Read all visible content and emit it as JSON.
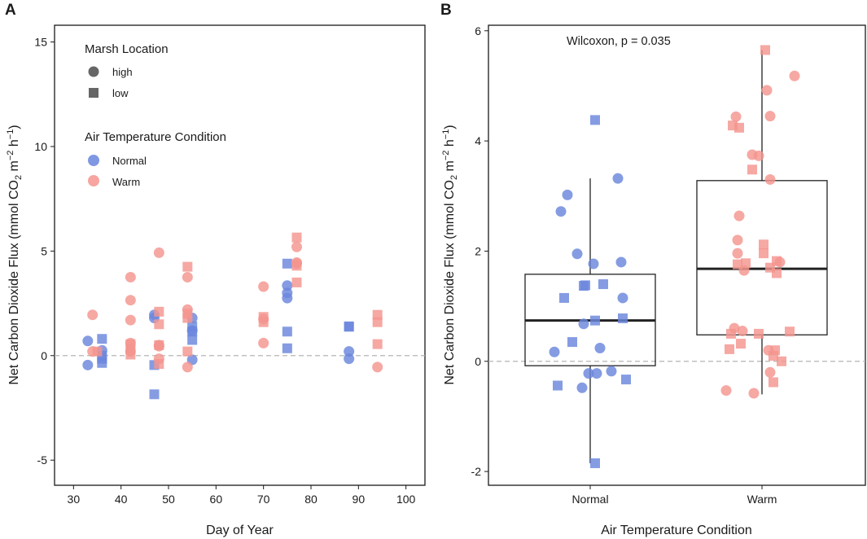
{
  "colors": {
    "normal": "#6a86dd",
    "warm": "#f4958f",
    "box_line": "#222222",
    "zero_line": "#b5b5b5",
    "legend_shape": "#666666"
  },
  "chart_data": [
    {
      "panel_label": "A",
      "type": "scatter",
      "xlabel": "Day of Year",
      "ylabel_prefix": "Net Carbon Dioxide Flux (mmol CO",
      "ylabel_sub2": "2",
      "ylabel_mid": " m",
      "ylabel_sup_m": "−2",
      "ylabel_h": " h",
      "ylabel_sup_h": "−1",
      "ylabel_suffix": ")",
      "xlim": [
        26,
        104
      ],
      "ylim": [
        -6.2,
        15.8
      ],
      "x_ticks": [
        30,
        40,
        50,
        60,
        70,
        80,
        90,
        100
      ],
      "x_tick_labels": [
        "30",
        "40",
        "50",
        "60",
        "70",
        "80",
        "90",
        "100"
      ],
      "y_ticks": [
        -5,
        0,
        5,
        10,
        15
      ],
      "y_tick_labels": [
        "-5",
        "0",
        "5",
        "10",
        "15"
      ],
      "reference_line_y": 0,
      "legend": {
        "title_shape": "Marsh Location",
        "shape_items": [
          {
            "label": "high",
            "shape": "circle"
          },
          {
            "label": "low",
            "shape": "square"
          }
        ],
        "title_color": "Air Temperature Condition",
        "color_items": [
          {
            "label": "Normal",
            "key": "normal"
          },
          {
            "label": "Warm",
            "key": "warm"
          }
        ]
      },
      "series": [
        {
          "name": "Normal-high",
          "condition": "normal",
          "shape": "circle",
          "x": [
            33,
            33,
            36,
            47,
            47,
            55,
            55,
            55,
            75,
            75,
            75,
            88,
            88
          ],
          "y": [
            0.7,
            -0.45,
            0.25,
            1.95,
            1.8,
            1.8,
            1.2,
            -0.2,
            3.35,
            3.0,
            2.75,
            0.2,
            -0.15
          ]
        },
        {
          "name": "Normal-low",
          "condition": "normal",
          "shape": "square",
          "x": [
            36,
            36,
            36,
            36,
            47,
            47,
            55,
            55,
            55,
            75,
            75,
            75,
            88,
            88
          ],
          "y": [
            0.8,
            0.0,
            -0.15,
            -0.35,
            -0.45,
            -1.85,
            1.4,
            1.15,
            0.75,
            4.4,
            1.15,
            0.35,
            1.4,
            1.38
          ]
        },
        {
          "name": "Warm-high",
          "condition": "warm",
          "shape": "circle",
          "x": [
            34,
            34,
            42,
            42,
            42,
            42,
            42,
            48,
            48,
            48,
            48,
            54,
            54,
            54,
            70,
            70,
            70,
            77,
            77,
            77
          ],
          "y": [
            1.95,
            0.2,
            3.75,
            2.65,
            1.7,
            0.6,
            0.2,
            4.92,
            0.5,
            0.45,
            -0.15,
            3.75,
            2.2,
            -0.55,
            3.3,
            1.75,
            0.6,
            5.2,
            4.45,
            4.4
          ]
        },
        {
          "name": "Warm-low",
          "condition": "warm",
          "shape": "square",
          "x": [
            35,
            42,
            42,
            42,
            48,
            48,
            48,
            48,
            54,
            54,
            54,
            54,
            70,
            70,
            77,
            77,
            77,
            94,
            94,
            94
          ],
          "y": [
            0.2,
            0.55,
            0.3,
            0.05,
            2.1,
            1.5,
            0.5,
            -0.4,
            4.25,
            2.0,
            1.8,
            0.2,
            1.85,
            1.6,
            5.65,
            4.3,
            3.5,
            1.95,
            1.6,
            0.55
          ]
        },
        {
          "name": "Warm-low-extra",
          "condition": "warm",
          "shape": "circle",
          "x": [
            94
          ],
          "y": [
            -0.55
          ]
        }
      ]
    },
    {
      "panel_label": "B",
      "type": "box",
      "xlabel": "Air Temperature Condition",
      "ylabel_prefix": "Net Carbon Dioxide Flux (mmol CO",
      "ylabel_sub2": "2",
      "ylabel_mid": " m",
      "ylabel_sup_m": "−2",
      "ylabel_h": " h",
      "ylabel_sup_h": "−1",
      "ylabel_suffix": ")",
      "ylim": [
        -2.25,
        6.1
      ],
      "y_ticks": [
        -2,
        0,
        2,
        4,
        6
      ],
      "y_tick_labels": [
        "-2",
        "0",
        "2",
        "4",
        "6"
      ],
      "categories": [
        "Normal",
        "Warm"
      ],
      "annotation": "Wilcoxon, p = 0.035",
      "reference_line_y": 0,
      "boxes": [
        {
          "category": "Normal",
          "q1": -0.08,
          "median": 0.74,
          "q3": 1.58,
          "whisker_low": -1.85,
          "whisker_high": 3.32
        },
        {
          "category": "Warm",
          "q1": 0.48,
          "median": 1.68,
          "q3": 3.28,
          "whisker_low": -0.6,
          "whisker_high": 5.65
        }
      ],
      "points": [
        {
          "category": "Normal",
          "jitter": -0.22,
          "y": 0.17,
          "shape": "circle"
        },
        {
          "category": "Normal",
          "jitter": -0.18,
          "y": 2.72,
          "shape": "circle"
        },
        {
          "category": "Normal",
          "jitter": -0.14,
          "y": 3.02,
          "shape": "circle"
        },
        {
          "category": "Normal",
          "jitter": -0.08,
          "y": 1.95,
          "shape": "circle"
        },
        {
          "category": "Normal",
          "jitter": -0.04,
          "y": 0.68,
          "shape": "circle"
        },
        {
          "category": "Normal",
          "jitter": -0.05,
          "y": -0.48,
          "shape": "circle"
        },
        {
          "category": "Normal",
          "jitter": -0.01,
          "y": -0.22,
          "shape": "circle"
        },
        {
          "category": "Normal",
          "jitter": 0.02,
          "y": 1.77,
          "shape": "circle"
        },
        {
          "category": "Normal",
          "jitter": 0.04,
          "y": -0.22,
          "shape": "circle"
        },
        {
          "category": "Normal",
          "jitter": 0.06,
          "y": 0.24,
          "shape": "circle"
        },
        {
          "category": "Normal",
          "jitter": 0.13,
          "y": -0.18,
          "shape": "circle"
        },
        {
          "category": "Normal",
          "jitter": 0.17,
          "y": 3.32,
          "shape": "circle"
        },
        {
          "category": "Normal",
          "jitter": 0.2,
          "y": 1.15,
          "shape": "circle"
        },
        {
          "category": "Normal",
          "jitter": 0.19,
          "y": 1.8,
          "shape": "circle"
        },
        {
          "category": "Normal",
          "jitter": -0.2,
          "y": -0.44,
          "shape": "square"
        },
        {
          "category": "Normal",
          "jitter": -0.16,
          "y": 1.15,
          "shape": "square"
        },
        {
          "category": "Normal",
          "jitter": -0.11,
          "y": 0.35,
          "shape": "square"
        },
        {
          "category": "Normal",
          "jitter": -0.04,
          "y": 1.37,
          "shape": "square"
        },
        {
          "category": "Normal",
          "jitter": -0.03,
          "y": 1.38,
          "shape": "square"
        },
        {
          "category": "Normal",
          "jitter": 0.03,
          "y": 4.38,
          "shape": "square"
        },
        {
          "category": "Normal",
          "jitter": 0.03,
          "y": -1.85,
          "shape": "square"
        },
        {
          "category": "Normal",
          "jitter": 0.03,
          "y": 0.74,
          "shape": "square"
        },
        {
          "category": "Normal",
          "jitter": 0.08,
          "y": 1.4,
          "shape": "square"
        },
        {
          "category": "Normal",
          "jitter": 0.2,
          "y": 0.78,
          "shape": "square"
        },
        {
          "category": "Normal",
          "jitter": 0.22,
          "y": -0.33,
          "shape": "square"
        },
        {
          "category": "Warm",
          "jitter": -0.22,
          "y": -0.53,
          "shape": "circle"
        },
        {
          "category": "Warm",
          "jitter": -0.17,
          "y": 0.6,
          "shape": "circle"
        },
        {
          "category": "Warm",
          "jitter": -0.16,
          "y": 4.44,
          "shape": "circle"
        },
        {
          "category": "Warm",
          "jitter": -0.15,
          "y": 2.2,
          "shape": "circle"
        },
        {
          "category": "Warm",
          "jitter": -0.15,
          "y": 1.96,
          "shape": "circle"
        },
        {
          "category": "Warm",
          "jitter": -0.14,
          "y": 2.64,
          "shape": "circle"
        },
        {
          "category": "Warm",
          "jitter": -0.11,
          "y": 1.65,
          "shape": "circle"
        },
        {
          "category": "Warm",
          "jitter": -0.12,
          "y": 0.55,
          "shape": "circle"
        },
        {
          "category": "Warm",
          "jitter": -0.06,
          "y": 3.75,
          "shape": "circle"
        },
        {
          "category": "Warm",
          "jitter": -0.05,
          "y": -0.58,
          "shape": "circle"
        },
        {
          "category": "Warm",
          "jitter": -0.02,
          "y": 3.73,
          "shape": "circle"
        },
        {
          "category": "Warm",
          "jitter": 0.03,
          "y": 4.92,
          "shape": "circle"
        },
        {
          "category": "Warm",
          "jitter": 0.05,
          "y": 4.45,
          "shape": "circle"
        },
        {
          "category": "Warm",
          "jitter": 0.05,
          "y": 3.3,
          "shape": "circle"
        },
        {
          "category": "Warm",
          "jitter": 0.04,
          "y": 0.2,
          "shape": "circle"
        },
        {
          "category": "Warm",
          "jitter": 0.05,
          "y": -0.2,
          "shape": "circle"
        },
        {
          "category": "Warm",
          "jitter": 0.11,
          "y": 1.8,
          "shape": "circle"
        },
        {
          "category": "Warm",
          "jitter": 0.2,
          "y": 5.18,
          "shape": "circle"
        },
        {
          "category": "Warm",
          "jitter": -0.2,
          "y": 0.22,
          "shape": "square"
        },
        {
          "category": "Warm",
          "jitter": -0.19,
          "y": 0.5,
          "shape": "square"
        },
        {
          "category": "Warm",
          "jitter": -0.18,
          "y": 4.28,
          "shape": "square"
        },
        {
          "category": "Warm",
          "jitter": -0.14,
          "y": 4.24,
          "shape": "square"
        },
        {
          "category": "Warm",
          "jitter": -0.15,
          "y": 1.76,
          "shape": "square"
        },
        {
          "category": "Warm",
          "jitter": -0.13,
          "y": 0.32,
          "shape": "square"
        },
        {
          "category": "Warm",
          "jitter": -0.1,
          "y": 1.78,
          "shape": "square"
        },
        {
          "category": "Warm",
          "jitter": -0.06,
          "y": 3.48,
          "shape": "square"
        },
        {
          "category": "Warm",
          "jitter": -0.02,
          "y": 0.5,
          "shape": "square"
        },
        {
          "category": "Warm",
          "jitter": 0.01,
          "y": 2.12,
          "shape": "square"
        },
        {
          "category": "Warm",
          "jitter": 0.01,
          "y": 1.96,
          "shape": "square"
        },
        {
          "category": "Warm",
          "jitter": 0.05,
          "y": 1.7,
          "shape": "square"
        },
        {
          "category": "Warm",
          "jitter": 0.08,
          "y": 0.2,
          "shape": "square"
        },
        {
          "category": "Warm",
          "jitter": 0.07,
          "y": 0.1,
          "shape": "square"
        },
        {
          "category": "Warm",
          "jitter": 0.09,
          "y": 1.6,
          "shape": "square"
        },
        {
          "category": "Warm",
          "jitter": 0.09,
          "y": 1.82,
          "shape": "square"
        },
        {
          "category": "Warm",
          "jitter": 0.07,
          "y": -0.38,
          "shape": "square"
        },
        {
          "category": "Warm",
          "jitter": 0.12,
          "y": 0.0,
          "shape": "square"
        },
        {
          "category": "Warm",
          "jitter": 0.17,
          "y": 0.54,
          "shape": "square"
        },
        {
          "category": "Warm",
          "jitter": 0.02,
          "y": 5.65,
          "shape": "square"
        }
      ]
    }
  ]
}
